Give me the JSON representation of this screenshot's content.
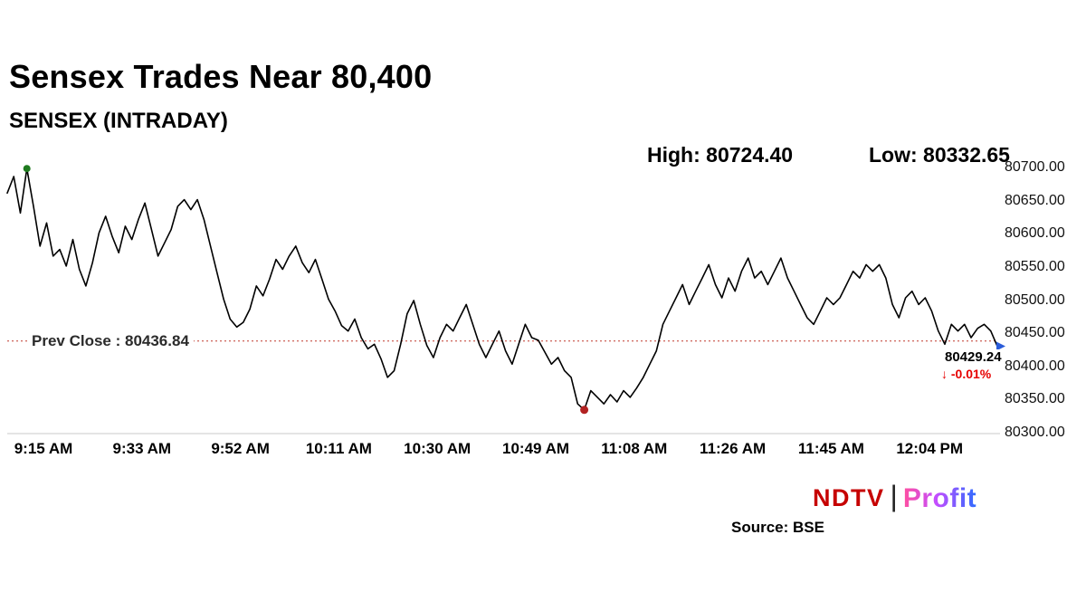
{
  "header": {
    "title": "Sensex Trades Near 80,400",
    "subtitle": "SENSEX (INTRADAY)",
    "high_label": "High: 80724.40",
    "low_label": "Low: 80332.65"
  },
  "chart_data": {
    "type": "line",
    "title": "SENSEX (INTRADAY)",
    "x_tick_labels": [
      "9:15 AM",
      "9:33 AM",
      "9:52 AM",
      "10:11 AM",
      "10:30 AM",
      "10:49 AM",
      "11:08 AM",
      "11:26 AM",
      "11:45 AM",
      "12:04 PM"
    ],
    "y_tick_labels": [
      "80700.00",
      "80650.00",
      "80600.00",
      "80550.00",
      "80500.00",
      "80450.00",
      "80400.00",
      "80350.00",
      "80300.00"
    ],
    "ylim": [
      80300,
      80700
    ],
    "high": 80724.4,
    "low": 80332.65,
    "prev_close": 80436.84,
    "prev_close_label": "Prev Close : 80436.84",
    "last": 80429.24,
    "last_label": "80429.24",
    "change_label": "↓ -0.01%",
    "values": [
      80660,
      80685,
      80630,
      80697,
      80640,
      80580,
      80615,
      80565,
      80575,
      80550,
      80590,
      80545,
      80520,
      80555,
      80600,
      80625,
      80595,
      80570,
      80610,
      80590,
      80620,
      80645,
      80605,
      80565,
      80585,
      80605,
      80640,
      80650,
      80635,
      80650,
      80620,
      80580,
      80540,
      80500,
      80470,
      80458,
      80465,
      80485,
      80520,
      80505,
      80530,
      80560,
      80545,
      80565,
      80580,
      80555,
      80540,
      80560,
      80530,
      80500,
      80482,
      80460,
      80452,
      80470,
      80442,
      80425,
      80432,
      80410,
      80382,
      80392,
      80432,
      80478,
      80498,
      80462,
      80430,
      80412,
      80442,
      80462,
      80452,
      80472,
      80492,
      80462,
      80432,
      80412,
      80432,
      80452,
      80422,
      80402,
      80432,
      80462,
      80442,
      80438,
      80420,
      80402,
      80412,
      80392,
      80382,
      80342,
      80333,
      80362,
      80352,
      80342,
      80356,
      80345,
      80362,
      80352,
      80366,
      80382,
      80402,
      80422,
      80462,
      80482,
      80502,
      80522,
      80492,
      80512,
      80532,
      80552,
      80522,
      80502,
      80532,
      80512,
      80542,
      80562,
      80532,
      80542,
      80522,
      80542,
      80562,
      80532,
      80512,
      80492,
      80472,
      80462,
      80482,
      80502,
      80492,
      80502,
      80522,
      80542,
      80532,
      80552,
      80542,
      80552,
      80532,
      80492,
      80472,
      80502,
      80512,
      80492,
      80502,
      80482,
      80452,
      80432,
      80462,
      80452,
      80462,
      80442,
      80456,
      80462,
      80452,
      80429
    ]
  },
  "colors": {
    "line": "#000000",
    "prev_close": "#c0392b",
    "change_negative": "#e60000",
    "open_marker": "#1e7a1e",
    "low_marker": "#b22222",
    "end_marker": "#2b5cd9",
    "ndtv_red": "#c60000"
  },
  "footer": {
    "source": "Source: BSE",
    "brand": {
      "ndtv": "NDTV",
      "divider": "|",
      "profit": "Profit"
    }
  }
}
